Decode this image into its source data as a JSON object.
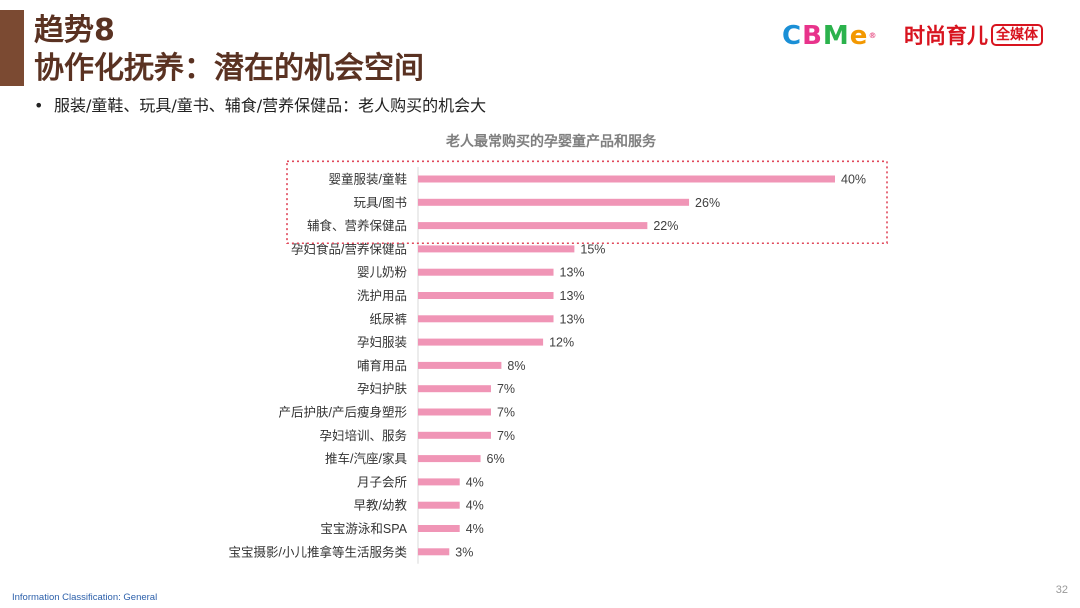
{
  "header": {
    "title_line1": "趋势8",
    "title_line2": "协作化抚养：潜在的机会空间",
    "bullet": "•",
    "bullet_text": "服装/童鞋、玩具/童书、辅食/营养保健品：老人购买的机会大"
  },
  "logos": {
    "cbme_letters": [
      "C",
      "B",
      "M",
      "e"
    ],
    "cbme_colors": [
      "#1a8fd6",
      "#e8338b",
      "#2bb24c",
      "#f39800"
    ],
    "cbme_reg": "®",
    "media_text": "时尚育儿",
    "media_box": "全媒体"
  },
  "chart_data": {
    "type": "bar",
    "orientation": "horizontal",
    "title": "老人最常购买的孕婴童产品和服务",
    "categories": [
      "婴童服装/童鞋",
      "玩具/图书",
      "辅食、营养保健品",
      "孕妇食品/营养保健品",
      "婴儿奶粉",
      "洗护用品",
      "纸尿裤",
      "孕妇服装",
      "哺育用品",
      "孕妇护肤",
      "产后护肤/产后瘦身塑形",
      "孕妇培训、服务",
      "推车/汽座/家具",
      "月子会所",
      "早教/幼教",
      "宝宝游泳和SPA",
      "宝宝摄影/小儿推拿等生活服务类"
    ],
    "values": [
      40,
      26,
      22,
      15,
      13,
      13,
      13,
      12,
      8,
      7,
      7,
      7,
      6,
      4,
      4,
      4,
      3
    ],
    "labels": [
      "40%",
      "26%",
      "22%",
      "15%",
      "13%",
      "13%",
      "13%",
      "12%",
      "8%",
      "7%",
      "7%",
      "7%",
      "6%",
      "4%",
      "4%",
      "4%",
      "3%"
    ],
    "xlim": [
      0,
      40
    ],
    "bar_color": "#f095b6",
    "highlight_color": "#e0475a",
    "highlighted_count": 3,
    "grid": false,
    "legend": "none"
  },
  "footer": {
    "classification": "Information Classification: General",
    "page": "32"
  }
}
